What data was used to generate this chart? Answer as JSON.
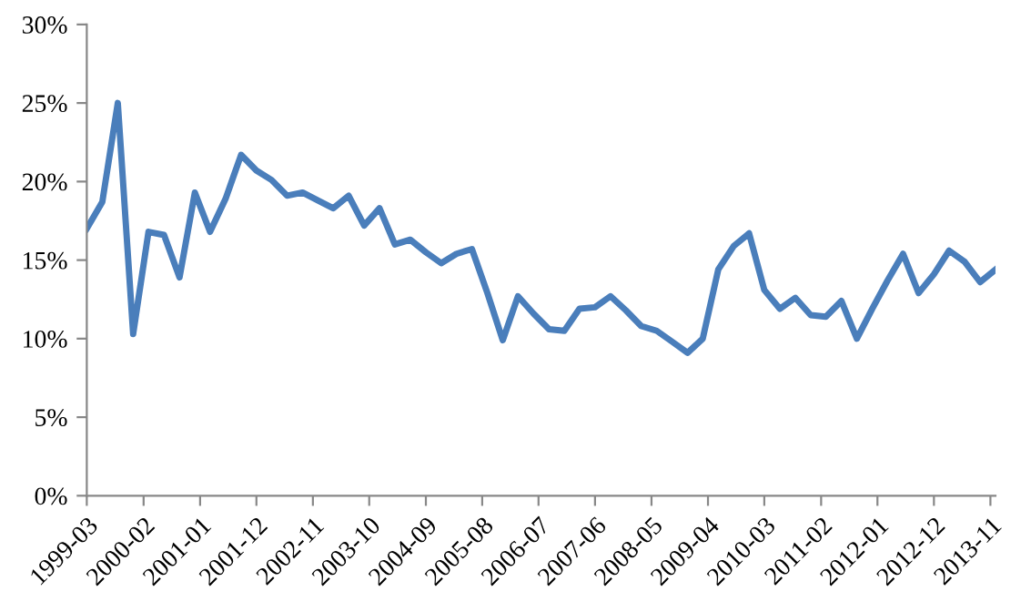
{
  "chart_data": {
    "type": "line",
    "x": [
      "1999-03",
      "1999-06",
      "1999-09",
      "1999-12",
      "2000-03",
      "2000-06",
      "2000-09",
      "2000-12",
      "2001-03",
      "2001-06",
      "2001-09",
      "2001-12",
      "2002-03",
      "2002-06",
      "2002-09",
      "2002-12",
      "2003-03",
      "2003-06",
      "2003-09",
      "2003-12",
      "2004-03",
      "2004-06",
      "2004-09",
      "2004-12",
      "2005-03",
      "2005-06",
      "2005-09",
      "2005-12",
      "2006-03",
      "2006-06",
      "2006-09",
      "2006-12",
      "2007-03",
      "2007-06",
      "2007-09",
      "2007-12",
      "2008-03",
      "2008-06",
      "2008-09",
      "2008-12",
      "2009-03",
      "2009-06",
      "2009-09",
      "2009-12",
      "2010-03",
      "2010-06",
      "2010-09",
      "2010-12",
      "2011-03",
      "2011-06",
      "2011-09",
      "2011-12",
      "2012-03",
      "2012-06",
      "2012-09",
      "2012-12",
      "2013-03",
      "2013-06",
      "2013-09",
      "2013-12"
    ],
    "series": [
      {
        "color": "#4a7ebb",
        "values": [
          17.0,
          18.7,
          25.0,
          10.3,
          16.8,
          16.6,
          13.9,
          19.3,
          16.8,
          18.9,
          21.7,
          20.7,
          20.1,
          19.1,
          19.3,
          18.8,
          18.3,
          19.1,
          17.2,
          18.3,
          16.0,
          16.3,
          15.5,
          14.8,
          15.4,
          15.7,
          12.9,
          9.9,
          12.7,
          11.6,
          10.6,
          10.5,
          11.9,
          12.0,
          12.7,
          11.8,
          10.8,
          10.5,
          9.8,
          9.1,
          10.0,
          14.4,
          15.9,
          16.7,
          13.1,
          11.9,
          12.6,
          11.5,
          11.4,
          12.4,
          10.0,
          11.9,
          13.7,
          15.4,
          12.9,
          14.1,
          15.6,
          14.9,
          13.6,
          14.4
        ]
      }
    ],
    "xlim": [
      "1999-03",
      "2013-12"
    ],
    "xticks": [
      "1999-03",
      "2000-02",
      "2001-01",
      "2001-12",
      "2002-11",
      "2003-10",
      "2004-09",
      "2005-08",
      "2006-07",
      "2007-06",
      "2008-05",
      "2009-04",
      "2010-03",
      "2011-02",
      "2012-01",
      "2012-12",
      "2013-11"
    ],
    "ylim": [
      0,
      30
    ],
    "yticks": [
      {
        "value": 0,
        "label": "0%"
      },
      {
        "value": 5,
        "label": "5%"
      },
      {
        "value": 10,
        "label": "10%"
      },
      {
        "value": 15,
        "label": "15%"
      },
      {
        "value": 20,
        "label": "20%"
      },
      {
        "value": 25,
        "label": "25%"
      },
      {
        "value": 30,
        "label": "30%"
      }
    ],
    "grid": false,
    "legend": false,
    "marker": "none",
    "line_style": "solid"
  }
}
